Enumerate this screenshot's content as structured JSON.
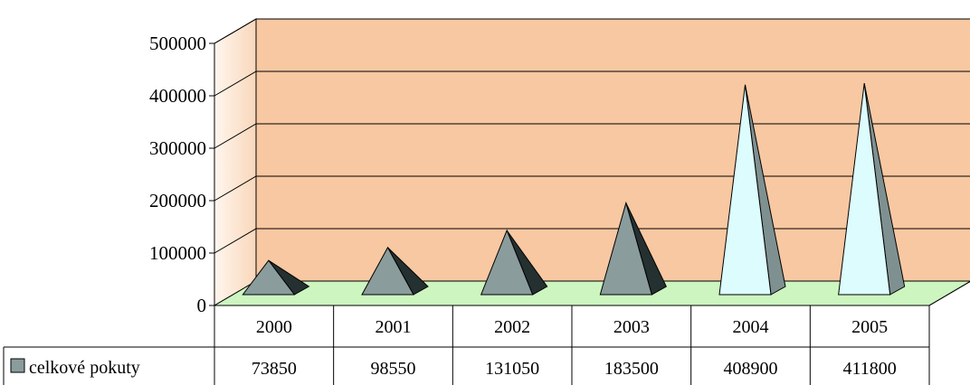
{
  "chart_data": {
    "type": "bar",
    "style": "3d-pyramid",
    "categories": [
      "2000",
      "2001",
      "2002",
      "2003",
      "2004",
      "2005"
    ],
    "series": [
      {
        "name": "celkové pokuty",
        "values": [
          73850,
          98550,
          131050,
          183500,
          408900,
          411800
        ],
        "color": "#8a9c9c",
        "highlight_color": "#ddfcfe",
        "highlight_from_index": 4
      }
    ],
    "ylim": [
      0,
      500000
    ],
    "yticks": [
      "0",
      "100000",
      "200000",
      "300000",
      "400000",
      "500000"
    ],
    "grid": true,
    "data_table": true,
    "colors": {
      "back_wall": "#f7c8a2",
      "side_wall": "#fde4d0",
      "floor": "#ccf5c0"
    }
  }
}
